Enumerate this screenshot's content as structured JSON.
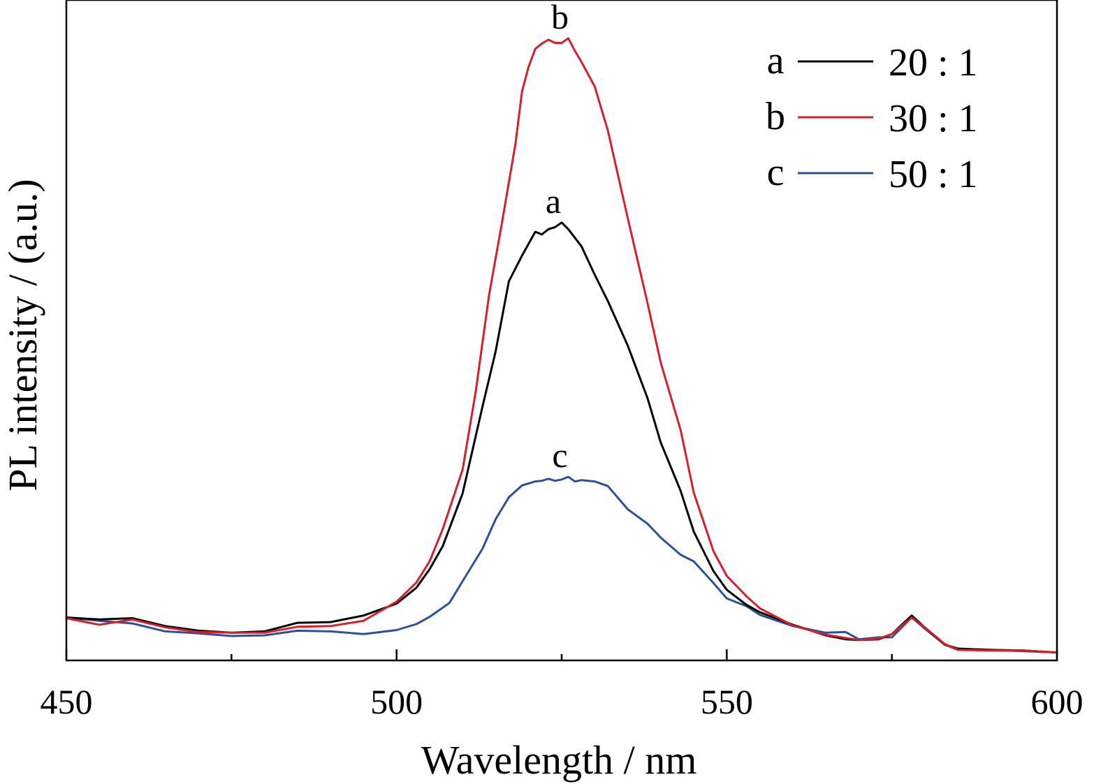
{
  "chart_data": {
    "type": "line",
    "xlabel": "Wavelength / nm",
    "ylabel": "PL intensity / (a.u.)",
    "xlim": [
      450,
      600
    ],
    "ylim": [
      0,
      100
    ],
    "xticks": [
      450,
      500,
      550,
      600
    ],
    "xtick_labels": [
      "450",
      "500",
      "550",
      "600"
    ],
    "minor_xticks": [
      475,
      525,
      575
    ],
    "yticks_shown": false,
    "grid": false,
    "legend_position": "top-right",
    "series": [
      {
        "key": "a",
        "name": "20 : 1",
        "color": "#000000",
        "peak_label": "a",
        "x": [
          450,
          455,
          460,
          465,
          470,
          475,
          480,
          485,
          490,
          495,
          500,
          503,
          505,
          507,
          510,
          513,
          515,
          517,
          519,
          521,
          522,
          523,
          524,
          525,
          526,
          528,
          530,
          532,
          535,
          538,
          540,
          543,
          545,
          548,
          550,
          553,
          555,
          560,
          565,
          568,
          570,
          573,
          575,
          578,
          580,
          583,
          585,
          590,
          595,
          600
        ],
        "y": [
          6.5,
          6.2,
          6.4,
          5.2,
          4.5,
          4.2,
          4.4,
          5.7,
          5.8,
          6.8,
          8.6,
          11.0,
          13.8,
          17.3,
          25.3,
          38.4,
          46.8,
          57.4,
          61.3,
          64.9,
          64.5,
          65.3,
          65.6,
          66.3,
          65.3,
          62.7,
          58.4,
          54.4,
          47.7,
          39.7,
          33.0,
          25.7,
          19.5,
          13.5,
          10.7,
          8.4,
          7.3,
          5.4,
          3.8,
          3.2,
          3.1,
          3.2,
          4.0,
          6.8,
          5.0,
          2.4,
          1.8,
          1.6,
          1.5,
          1.2
        ]
      },
      {
        "key": "b",
        "name": "30 : 1",
        "color": "#d71f2c",
        "peak_label": "b",
        "x": [
          450,
          455,
          460,
          465,
          470,
          475,
          480,
          485,
          490,
          495,
          500,
          503,
          505,
          507,
          510,
          512,
          514,
          516,
          518,
          519,
          520,
          521,
          522,
          523,
          524,
          525,
          526,
          527,
          528,
          530,
          532,
          535,
          538,
          540,
          543,
          545,
          548,
          550,
          553,
          555,
          560,
          565,
          568,
          570,
          573,
          575,
          578,
          580,
          583,
          585,
          590,
          595,
          600
        ],
        "y": [
          6.4,
          5.4,
          6.2,
          5.0,
          4.3,
          4.2,
          4.2,
          5.1,
          5.2,
          6.0,
          8.9,
          11.8,
          15.0,
          19.9,
          28.9,
          40.8,
          55.3,
          66.5,
          78.2,
          86.2,
          89.9,
          92.6,
          93.4,
          94.0,
          93.5,
          93.5,
          94.2,
          92.3,
          90.6,
          86.9,
          80.2,
          67.0,
          54.1,
          45.1,
          34.9,
          25.4,
          16.5,
          12.8,
          9.7,
          7.9,
          5.3,
          3.9,
          3.4,
          3.1,
          3.3,
          4.0,
          6.5,
          5.0,
          2.5,
          1.6,
          1.5,
          1.5,
          1.2
        ]
      },
      {
        "key": "c",
        "name": "50 : 1",
        "color": "#2e4f9b",
        "peak_label": "c",
        "x": [
          450,
          455,
          460,
          465,
          470,
          475,
          480,
          485,
          490,
          495,
          500,
          503,
          505,
          508,
          510,
          513,
          515,
          517,
          519,
          521,
          522,
          523,
          524,
          525,
          526,
          527,
          528,
          530,
          532,
          535,
          538,
          540,
          543,
          545,
          548,
          550,
          553,
          555,
          560,
          565,
          568,
          570,
          573,
          575,
          578,
          580,
          583,
          585,
          590,
          595,
          600
        ],
        "y": [
          6.5,
          6.0,
          5.6,
          4.4,
          4.1,
          3.7,
          3.8,
          4.5,
          4.4,
          4.0,
          4.6,
          5.5,
          6.6,
          8.7,
          12.0,
          16.9,
          21.4,
          24.7,
          26.5,
          27.1,
          27.2,
          27.5,
          27.2,
          27.4,
          27.8,
          27.1,
          27.3,
          27.1,
          26.4,
          22.9,
          20.7,
          18.6,
          16.0,
          15.0,
          11.7,
          9.4,
          8.2,
          6.9,
          5.2,
          4.2,
          4.3,
          3.2,
          3.5,
          3.5,
          6.5,
          4.8,
          2.4,
          1.6,
          1.6,
          1.4,
          1.2
        ]
      }
    ]
  },
  "legend": {
    "items": [
      {
        "key": "a",
        "label": "20 : 1"
      },
      {
        "key": "b",
        "label": "30 : 1"
      },
      {
        "key": "c",
        "label": "50 : 1"
      }
    ]
  }
}
